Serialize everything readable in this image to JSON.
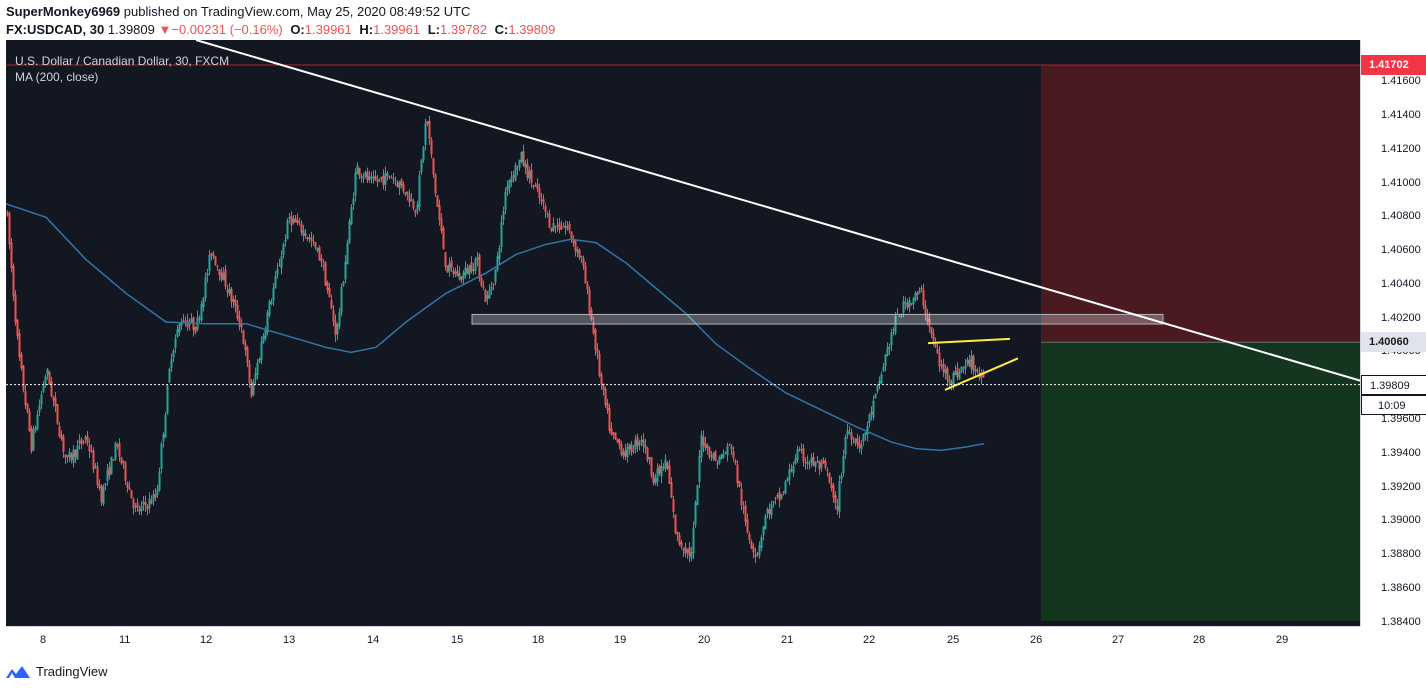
{
  "header": {
    "author": "SuperMonkey6969",
    "published_text": "published on TradingView.com, May 25, 2020 08:49:52 UTC",
    "symbol": "FX:USDCAD, 30",
    "last": "1.39809",
    "change_arrow": "▼",
    "change": "−0.00231 (−0.16%)",
    "o_label": "O:",
    "o_value": "1.39961",
    "h_label": "H:",
    "h_value": "1.39961",
    "l_label": "L:",
    "l_value": "1.39782",
    "c_label": "C:",
    "c_value": "1.39809"
  },
  "legend": {
    "title": "U.S. Dollar / Canadian Dollar, 30, FXCM",
    "indicator": "MA (200, close)"
  },
  "footer": {
    "brand": "TradingView",
    "logo_icon": "tradingview-logo-icon"
  },
  "colors": {
    "background": "#131722",
    "up_candle": "#26a69a",
    "down_candle": "#ef5350",
    "ma": "#2f76a8",
    "trendline": "#ffffff",
    "wedge": "#ffeb3b",
    "stop_zone": "#4a1a20",
    "target_zone": "#14361e",
    "stop_price_bg": "#f23645"
  },
  "chart_data": {
    "type": "candlestick",
    "title": "U.S. Dollar / Canadian Dollar, 30, FXCM",
    "ylim": [
      1.3838,
      1.4185
    ],
    "x_ticks": [
      {
        "label": "8",
        "bar": 40
      },
      {
        "label": "11",
        "bar": 119
      },
      {
        "label": "12",
        "bar": 200
      },
      {
        "label": "13",
        "bar": 283
      },
      {
        "label": "14",
        "bar": 367
      },
      {
        "label": "15",
        "bar": 451
      },
      {
        "label": "18",
        "bar": 532
      },
      {
        "label": "19",
        "bar": 614
      },
      {
        "label": "20",
        "bar": 698
      },
      {
        "label": "21",
        "bar": 781
      },
      {
        "label": "22",
        "bar": 863
      },
      {
        "label": "25",
        "bar": 947
      },
      {
        "label": "26",
        "bar": 1030
      },
      {
        "label": "27",
        "bar": 1112
      },
      {
        "label": "28",
        "bar": 1193
      },
      {
        "label": "29",
        "bar": 1276
      }
    ],
    "y_ticks": [
      "1.41600",
      "1.41400",
      "1.41200",
      "1.41000",
      "1.40800",
      "1.40600",
      "1.40400",
      "1.40200",
      "1.40000",
      "1.39800",
      "1.39600",
      "1.39400",
      "1.39200",
      "1.39000",
      "1.38800",
      "1.38600",
      "1.38400"
    ],
    "last_bar": 978,
    "price_path": [
      [
        0,
        1.4085
      ],
      [
        12,
        1.4
      ],
      [
        25,
        1.3945
      ],
      [
        40,
        1.399
      ],
      [
        60,
        1.3935
      ],
      [
        80,
        1.395
      ],
      [
        95,
        1.3915
      ],
      [
        110,
        1.3945
      ],
      [
        130,
        1.3905
      ],
      [
        150,
        1.3915
      ],
      [
        165,
        1.4
      ],
      [
        175,
        1.402
      ],
      [
        190,
        1.4015
      ],
      [
        205,
        1.406
      ],
      [
        220,
        1.404
      ],
      [
        235,
        1.4015
      ],
      [
        245,
        1.3975
      ],
      [
        260,
        1.402
      ],
      [
        270,
        1.4045
      ],
      [
        283,
        1.408
      ],
      [
        300,
        1.407
      ],
      [
        315,
        1.4055
      ],
      [
        330,
        1.401
      ],
      [
        340,
        1.406
      ],
      [
        350,
        1.411
      ],
      [
        365,
        1.41
      ],
      [
        385,
        1.4105
      ],
      [
        400,
        1.4095
      ],
      [
        410,
        1.4085
      ],
      [
        420,
        1.414
      ],
      [
        430,
        1.409
      ],
      [
        440,
        1.405
      ],
      [
        455,
        1.4045
      ],
      [
        470,
        1.4055
      ],
      [
        480,
        1.403
      ],
      [
        490,
        1.405
      ],
      [
        500,
        1.41
      ],
      [
        515,
        1.4115
      ],
      [
        530,
        1.4095
      ],
      [
        545,
        1.4075
      ],
      [
        560,
        1.4075
      ],
      [
        575,
        1.4055
      ],
      [
        585,
        1.402
      ],
      [
        595,
        1.398
      ],
      [
        605,
        1.395
      ],
      [
        620,
        1.394
      ],
      [
        635,
        1.395
      ],
      [
        648,
        1.3925
      ],
      [
        660,
        1.3935
      ],
      [
        670,
        1.389
      ],
      [
        685,
        1.388
      ],
      [
        695,
        1.395
      ],
      [
        710,
        1.3935
      ],
      [
        725,
        1.3945
      ],
      [
        740,
        1.3895
      ],
      [
        750,
        1.388
      ],
      [
        760,
        1.3905
      ],
      [
        775,
        1.3915
      ],
      [
        790,
        1.394
      ],
      [
        805,
        1.3935
      ],
      [
        820,
        1.393
      ],
      [
        830,
        1.3905
      ],
      [
        840,
        1.3955
      ],
      [
        855,
        1.3945
      ],
      [
        870,
        1.3975
      ],
      [
        880,
        1.4
      ],
      [
        890,
        1.402
      ],
      [
        900,
        1.403
      ],
      [
        915,
        1.4035
      ],
      [
        925,
        1.401
      ],
      [
        935,
        1.399
      ],
      [
        945,
        1.3985
      ],
      [
        955,
        1.399
      ],
      [
        965,
        1.3995
      ],
      [
        978,
        1.39809
      ]
    ],
    "ma_path": [
      [
        0,
        1.4088
      ],
      [
        40,
        1.408
      ],
      [
        80,
        1.4055
      ],
      [
        120,
        1.4035
      ],
      [
        160,
        1.4018
      ],
      [
        200,
        1.4017
      ],
      [
        240,
        1.4017
      ],
      [
        280,
        1.401
      ],
      [
        320,
        1.4003
      ],
      [
        345,
        1.4
      ],
      [
        370,
        1.4003
      ],
      [
        400,
        1.4018
      ],
      [
        440,
        1.4035
      ],
      [
        480,
        1.4047
      ],
      [
        510,
        1.4058
      ],
      [
        540,
        1.4064
      ],
      [
        565,
        1.4067
      ],
      [
        590,
        1.4065
      ],
      [
        620,
        1.4053
      ],
      [
        650,
        1.4038
      ],
      [
        680,
        1.4023
      ],
      [
        710,
        1.4005
      ],
      [
        745,
        1.399
      ],
      [
        780,
        1.3976
      ],
      [
        815,
        1.3966
      ],
      [
        850,
        1.3956
      ],
      [
        885,
        1.3947
      ],
      [
        910,
        1.3943
      ],
      [
        935,
        1.3942
      ],
      [
        960,
        1.3944
      ],
      [
        978,
        1.3946
      ]
    ],
    "trendline": {
      "from": [
        190,
        1.4185
      ],
      "to": [
        1356,
        1.3983
      ]
    },
    "resistance_zone": {
      "bar_from": 466,
      "bar_to": 1157,
      "price_low": 1.40168,
      "price_high": 1.40225
    },
    "wedge_upper": {
      "from": [
        922,
        1.40055
      ],
      "to": [
        1004,
        1.4008
      ]
    },
    "wedge_lower": {
      "from": [
        939,
        1.39778
      ],
      "to": [
        1012,
        1.39965
      ]
    },
    "position": {
      "start_bar": 1035,
      "entry": 1.4006,
      "stop": 1.41702,
      "target": 1.3841
    },
    "price_labels": [
      {
        "text": "1.41702",
        "kind": "stop"
      },
      {
        "text": "1.40060",
        "kind": "entry"
      },
      {
        "text": "1.39809",
        "kind": "last"
      },
      {
        "text": "10:09",
        "kind": "countdown"
      }
    ]
  }
}
